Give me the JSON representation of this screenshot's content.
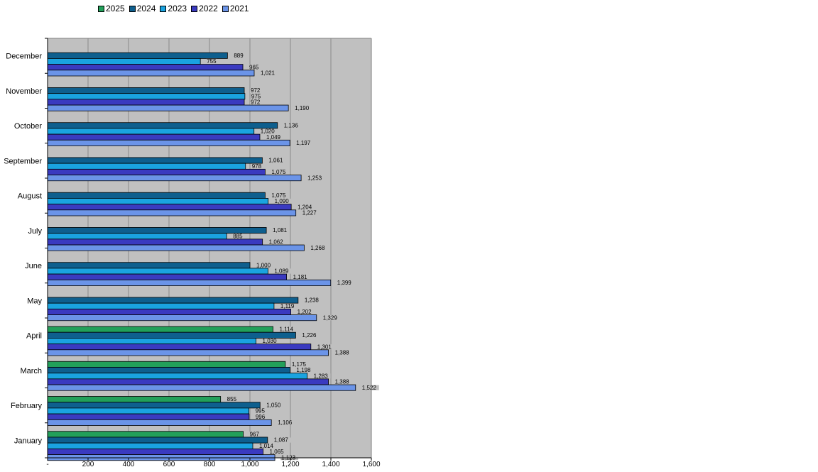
{
  "chart_data": {
    "type": "bar",
    "orientation": "horizontal",
    "categories": [
      "December",
      "November",
      "October",
      "September",
      "August",
      "July",
      "June",
      "May",
      "April",
      "March",
      "February",
      "January"
    ],
    "series": [
      {
        "name": "2025",
        "color": "#22a05a",
        "values": [
          null,
          null,
          null,
          null,
          null,
          null,
          null,
          null,
          1114,
          1175,
          855,
          967
        ]
      },
      {
        "name": "2024",
        "color": "#0e5f8e",
        "values": [
          889,
          972,
          1136,
          1061,
          1075,
          1081,
          1000,
          1238,
          1226,
          1198,
          1050,
          1087
        ]
      },
      {
        "name": "2023",
        "color": "#1aa3e0",
        "values": [
          755,
          975,
          1020,
          978,
          1090,
          885,
          1089,
          1119,
          1030,
          1283,
          995,
          1014
        ]
      },
      {
        "name": "2022",
        "color": "#3a3ac0",
        "values": [
          965,
          972,
          1049,
          1075,
          1204,
          1062,
          1181,
          1202,
          1301,
          1388,
          996,
          1065
        ]
      },
      {
        "name": "2021",
        "color": "#6b94e8",
        "values": [
          1021,
          1190,
          1197,
          1253,
          1227,
          1268,
          1399,
          1329,
          1388,
          1522,
          1106,
          1123
        ]
      }
    ],
    "legend_order": [
      "2025",
      "2024",
      "2023",
      "2022",
      "2021"
    ],
    "xlim": [
      0,
      1600
    ],
    "xticks": [
      0,
      200,
      400,
      600,
      800,
      1000,
      1200,
      1400,
      1600
    ],
    "xtick_labels": [
      "-",
      "200",
      "400",
      "600",
      "800",
      "1,000",
      "1,200",
      "1,400",
      "1,600"
    ],
    "grid": true,
    "legend_position": "top-left",
    "plot_background": "#c0c0c0",
    "title": "",
    "xlabel": "",
    "ylabel": ""
  }
}
